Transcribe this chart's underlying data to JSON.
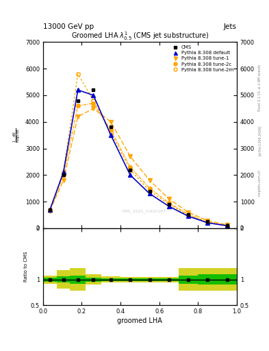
{
  "title": "13000 GeV pp",
  "title_right": "Jets",
  "plot_title": "Groomed LHA $\\lambda^{1}_{0.5}$ (CMS jet substructure)",
  "xlabel": "groomed LHA",
  "ylabel": "$\\frac{1}{\\mathrm{N}}\\frac{\\mathrm{d}N}{\\mathrm{d}p_{\\mathrm{T}}\\,\\mathrm{d}\\lambda}$",
  "ylabel_ratio": "Ratio to CMS",
  "watermark": "CMS_2021_I1920187",
  "rivet_label": "Rivet 3.1.10, ≥ 2.8M events",
  "arxiv_label": "[arXiv:1306.3436]",
  "mcplots_label": "mcplots.cern.ch",
  "x_bins": [
    0.0,
    0.07,
    0.14,
    0.22,
    0.3,
    0.4,
    0.5,
    0.6,
    0.7,
    0.8,
    0.9,
    1.0
  ],
  "cms_data": [
    700,
    2000,
    4800,
    5200,
    3800,
    2200,
    1400,
    900,
    500,
    250,
    100
  ],
  "pythia_default": [
    680,
    2100,
    5200,
    5000,
    3500,
    2000,
    1300,
    820,
    450,
    200,
    90
  ],
  "pythia_tune1": [
    650,
    1800,
    4200,
    4500,
    4000,
    2700,
    1800,
    1100,
    600,
    280,
    120
  ],
  "pythia_tune2c": [
    660,
    2000,
    4600,
    4700,
    3700,
    2300,
    1500,
    950,
    520,
    230,
    100
  ],
  "pythia_tune2m": [
    700,
    2100,
    5800,
    4800,
    3600,
    2200,
    1400,
    900,
    480,
    220,
    95
  ],
  "ratio_stat_inner": [
    0.04,
    0.06,
    0.08,
    0.04,
    0.03,
    0.03,
    0.03,
    0.03,
    0.08,
    0.1,
    0.1
  ],
  "ratio_stat_outer": [
    0.08,
    0.18,
    0.22,
    0.1,
    0.06,
    0.05,
    0.05,
    0.05,
    0.22,
    0.22,
    0.22
  ],
  "ylim_main": [
    0,
    7000
  ],
  "ylim_ratio": [
    0.5,
    2.0
  ],
  "yticks_main": [
    0,
    1000,
    2000,
    3000,
    4000,
    5000,
    6000,
    7000
  ],
  "yticks_ratio": [
    0.5,
    1.0,
    2.0
  ],
  "color_cms": "#000000",
  "color_default": "#0000CC",
  "color_orange": "#FFA500",
  "color_band_inner": "#00BB00",
  "color_band_outer": "#CCCC00",
  "background_color": "#ffffff",
  "legend_labels": [
    "CMS",
    "Pythia 8.308 default",
    "Pythia 8.308 tune-1",
    "Pythia 8.308 tune-2c",
    "Pythia 8.308 tune-2m"
  ]
}
